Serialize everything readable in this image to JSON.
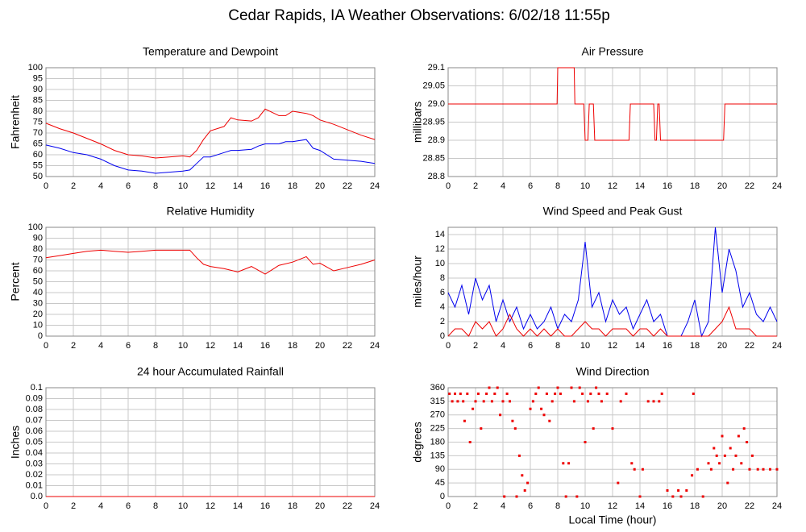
{
  "title": "Cedar Rapids, IA Weather Observations: 6/02/18 11:55p",
  "chart_data": [
    {
      "type": "line",
      "title": "Temperature and Dewpoint",
      "ylabel": "Fahrenheit",
      "xlim": [
        0,
        24
      ],
      "xticks": [
        0,
        2,
        4,
        6,
        8,
        10,
        12,
        14,
        16,
        18,
        20,
        22,
        24
      ],
      "ylim": [
        50,
        100
      ],
      "yticks": [
        50,
        55,
        60,
        65,
        70,
        75,
        80,
        85,
        90,
        95,
        100
      ],
      "grid": true,
      "x": [
        0,
        1,
        2,
        3,
        4,
        5,
        6,
        7,
        8,
        9,
        10,
        10.5,
        11,
        11.5,
        12,
        13,
        13.5,
        14,
        15,
        15.5,
        16,
        17,
        17.5,
        18,
        19,
        19.5,
        20,
        21,
        22,
        23,
        24
      ],
      "series": [
        {
          "color": "#ee0000",
          "values": [
            74.5,
            72,
            70,
            67.5,
            65,
            62,
            60,
            59.5,
            58.5,
            59,
            59.5,
            59,
            62,
            67,
            71,
            73,
            77,
            76,
            75.5,
            77,
            81,
            78,
            78,
            80,
            79,
            78,
            76,
            74,
            71.5,
            69,
            67
          ]
        },
        {
          "color": "#0000ee",
          "values": [
            64.5,
            63,
            61,
            60,
            58,
            55,
            53,
            52.5,
            51.5,
            52,
            52.5,
            53,
            56,
            59,
            59,
            61,
            62,
            62,
            62.5,
            64,
            65,
            65,
            66,
            66,
            67,
            63,
            62,
            58,
            57.5,
            57,
            56
          ]
        }
      ]
    },
    {
      "type": "line",
      "title": "Air Pressure",
      "ylabel": "millibars",
      "xlim": [
        0,
        24
      ],
      "xticks": [
        0,
        2,
        4,
        6,
        8,
        10,
        12,
        14,
        16,
        18,
        20,
        22,
        24
      ],
      "ylim": [
        28.8,
        29.1
      ],
      "yticks": [
        28.8,
        28.85,
        28.9,
        28.95,
        {
          "value": 29.0,
          "label": "29.0"
        },
        29.05,
        29.1
      ],
      "grid": true,
      "x": [
        0,
        7.95,
        8,
        9.2,
        9.25,
        9.4,
        9.9,
        10,
        10.2,
        10.3,
        10.6,
        10.7,
        13.2,
        13.3,
        15.0,
        15.1,
        15.2,
        15.3,
        15.4,
        15.5,
        20.1,
        20.2,
        24
      ],
      "series": [
        {
          "color": "#ee0000",
          "values": [
            29.0,
            29.0,
            29.1,
            29.1,
            29.0,
            29.0,
            29.0,
            28.9,
            28.9,
            29.0,
            29.0,
            28.9,
            28.9,
            29.0,
            29.0,
            28.9,
            28.9,
            29.0,
            29.0,
            28.9,
            28.9,
            29.0,
            29.0
          ]
        }
      ]
    },
    {
      "type": "line",
      "title": "Relative Humidity",
      "ylabel": "Percent",
      "xlim": [
        0,
        24
      ],
      "xticks": [
        0,
        2,
        4,
        6,
        8,
        10,
        12,
        14,
        16,
        18,
        20,
        22,
        24
      ],
      "ylim": [
        0,
        100
      ],
      "yticks": [
        0,
        10,
        20,
        30,
        40,
        50,
        60,
        70,
        80,
        90,
        100
      ],
      "grid": true,
      "x": [
        0,
        1,
        2,
        3,
        4,
        5,
        6,
        7,
        8,
        9,
        10,
        10.5,
        11,
        11.5,
        12,
        13,
        14,
        15,
        16,
        16.5,
        17,
        18,
        19,
        19.5,
        20,
        21,
        22,
        23,
        24
      ],
      "series": [
        {
          "color": "#ee0000",
          "values": [
            72,
            74,
            76,
            78,
            79,
            78,
            77,
            78,
            79,
            79,
            79,
            79,
            72,
            66,
            64,
            62,
            59,
            64,
            57,
            61,
            65,
            68,
            73,
            66,
            67,
            60,
            63,
            66,
            70
          ]
        }
      ]
    },
    {
      "type": "line",
      "title": "Wind Speed and Peak Gust",
      "ylabel": "miles/hour",
      "xlim": [
        0,
        24
      ],
      "xticks": [
        0,
        2,
        4,
        6,
        8,
        10,
        12,
        14,
        16,
        18,
        20,
        22,
        24
      ],
      "ylim": [
        0,
        15
      ],
      "yticks": [
        0,
        2,
        4,
        6,
        8,
        10,
        12,
        14
      ],
      "grid": true,
      "x": [
        0,
        0.5,
        1,
        1.5,
        2,
        2.5,
        3,
        3.5,
        4,
        4.5,
        5,
        5.5,
        6,
        6.5,
        7,
        7.5,
        8,
        8.5,
        9,
        9.5,
        10,
        10.5,
        11,
        11.5,
        12,
        12.5,
        13,
        13.5,
        14,
        14.5,
        15,
        15.5,
        16,
        16.5,
        17,
        17.5,
        18,
        18.5,
        19,
        19.5,
        20,
        20.5,
        21,
        21.5,
        22,
        22.5,
        23,
        23.5,
        24
      ],
      "series": [
        {
          "color": "#0000ee",
          "values": [
            6,
            4,
            7,
            3,
            8,
            5,
            7,
            2,
            5,
            2,
            4,
            1,
            3,
            1,
            2,
            4,
            1,
            3,
            2,
            5,
            13,
            4,
            6,
            2,
            5,
            3,
            4,
            1,
            3,
            5,
            2,
            3,
            0,
            0,
            0,
            2,
            5,
            0,
            2,
            15,
            6,
            12,
            9,
            4,
            6,
            3,
            2,
            4,
            2
          ]
        },
        {
          "color": "#ee0000",
          "values": [
            0,
            1,
            1,
            0,
            2,
            1,
            2,
            0,
            1,
            3,
            1,
            0,
            1,
            0,
            1,
            0,
            1,
            0,
            0,
            1,
            2,
            1,
            1,
            0,
            1,
            1,
            1,
            0,
            1,
            1,
            0,
            1,
            0,
            0,
            0,
            0,
            0,
            0,
            0,
            1,
            2,
            4,
            1,
            1,
            1,
            0,
            0,
            0,
            0
          ]
        }
      ]
    },
    {
      "type": "line",
      "title": "24 hour Accumulated Rainfall",
      "ylabel": "Inches",
      "xlim": [
        0,
        24
      ],
      "xticks": [
        0,
        2,
        4,
        6,
        8,
        10,
        12,
        14,
        16,
        18,
        20,
        22,
        24
      ],
      "ylim": [
        0,
        0.1
      ],
      "yticks": [
        {
          "value": 0,
          "label": "0.0"
        },
        0.01,
        0.02,
        0.03,
        0.04,
        0.05,
        0.06,
        0.07,
        0.08,
        0.09,
        0.1
      ],
      "grid": true,
      "x": [
        0,
        24
      ],
      "series": [
        {
          "color": "#ee0000",
          "values": [
            0,
            0
          ]
        }
      ]
    },
    {
      "type": "scatter",
      "title": "Wind Direction",
      "ylabel": "degrees",
      "xlabel": "Local Time (hour)",
      "xlim": [
        0,
        24
      ],
      "xticks": [
        0,
        2,
        4,
        6,
        8,
        10,
        12,
        14,
        16,
        18,
        20,
        22,
        24
      ],
      "ylim": [
        0,
        360
      ],
      "yticks": [
        0,
        45,
        90,
        135,
        180,
        225,
        270,
        315,
        360
      ],
      "grid": true,
      "x": [
        0.1,
        0.3,
        0.5,
        0.7,
        0.9,
        1.1,
        1.2,
        1.4,
        1.6,
        1.8,
        2.0,
        2.2,
        2.4,
        2.6,
        2.8,
        3.0,
        3.2,
        3.4,
        3.6,
        3.8,
        4.0,
        4.1,
        4.3,
        4.5,
        4.7,
        4.9,
        5.0,
        5.2,
        5.4,
        5.6,
        5.8,
        6.0,
        6.2,
        6.4,
        6.6,
        6.8,
        7.0,
        7.2,
        7.4,
        7.6,
        7.8,
        8.0,
        8.2,
        8.4,
        8.6,
        8.8,
        9.0,
        9.2,
        9.4,
        9.6,
        9.8,
        10.0,
        10.2,
        10.4,
        10.6,
        10.8,
        11.0,
        11.2,
        11.6,
        12.0,
        12.4,
        12.6,
        13.0,
        13.4,
        13.6,
        14.0,
        14.2,
        14.6,
        15.0,
        15.4,
        15.6,
        16.0,
        16.4,
        16.8,
        17.0,
        17.4,
        17.8,
        17.9,
        18.2,
        18.6,
        19.0,
        19.2,
        19.4,
        19.6,
        19.8,
        20.0,
        20.2,
        20.4,
        20.6,
        20.8,
        21.0,
        21.2,
        21.4,
        21.6,
        21.8,
        22.0,
        22.2,
        22.6,
        23.0,
        23.5,
        24.0
      ],
      "series": [
        {
          "color": "#ee0000",
          "values": [
            340,
            315,
            340,
            315,
            340,
            315,
            250,
            340,
            180,
            290,
            315,
            340,
            225,
            315,
            340,
            360,
            315,
            340,
            360,
            270,
            315,
            0,
            340,
            315,
            250,
            225,
            0,
            135,
            70,
            20,
            45,
            290,
            315,
            340,
            360,
            290,
            270,
            340,
            250,
            315,
            340,
            360,
            340,
            110,
            0,
            110,
            360,
            315,
            0,
            360,
            340,
            180,
            315,
            340,
            225,
            360,
            340,
            315,
            340,
            225,
            45,
            315,
            340,
            110,
            90,
            0,
            90,
            315,
            315,
            315,
            340,
            20,
            0,
            20,
            0,
            20,
            70,
            340,
            90,
            0,
            110,
            90,
            160,
            135,
            110,
            200,
            135,
            45,
            160,
            90,
            135,
            200,
            110,
            225,
            180,
            90,
            135,
            90,
            90,
            90,
            90
          ]
        }
      ]
    }
  ]
}
